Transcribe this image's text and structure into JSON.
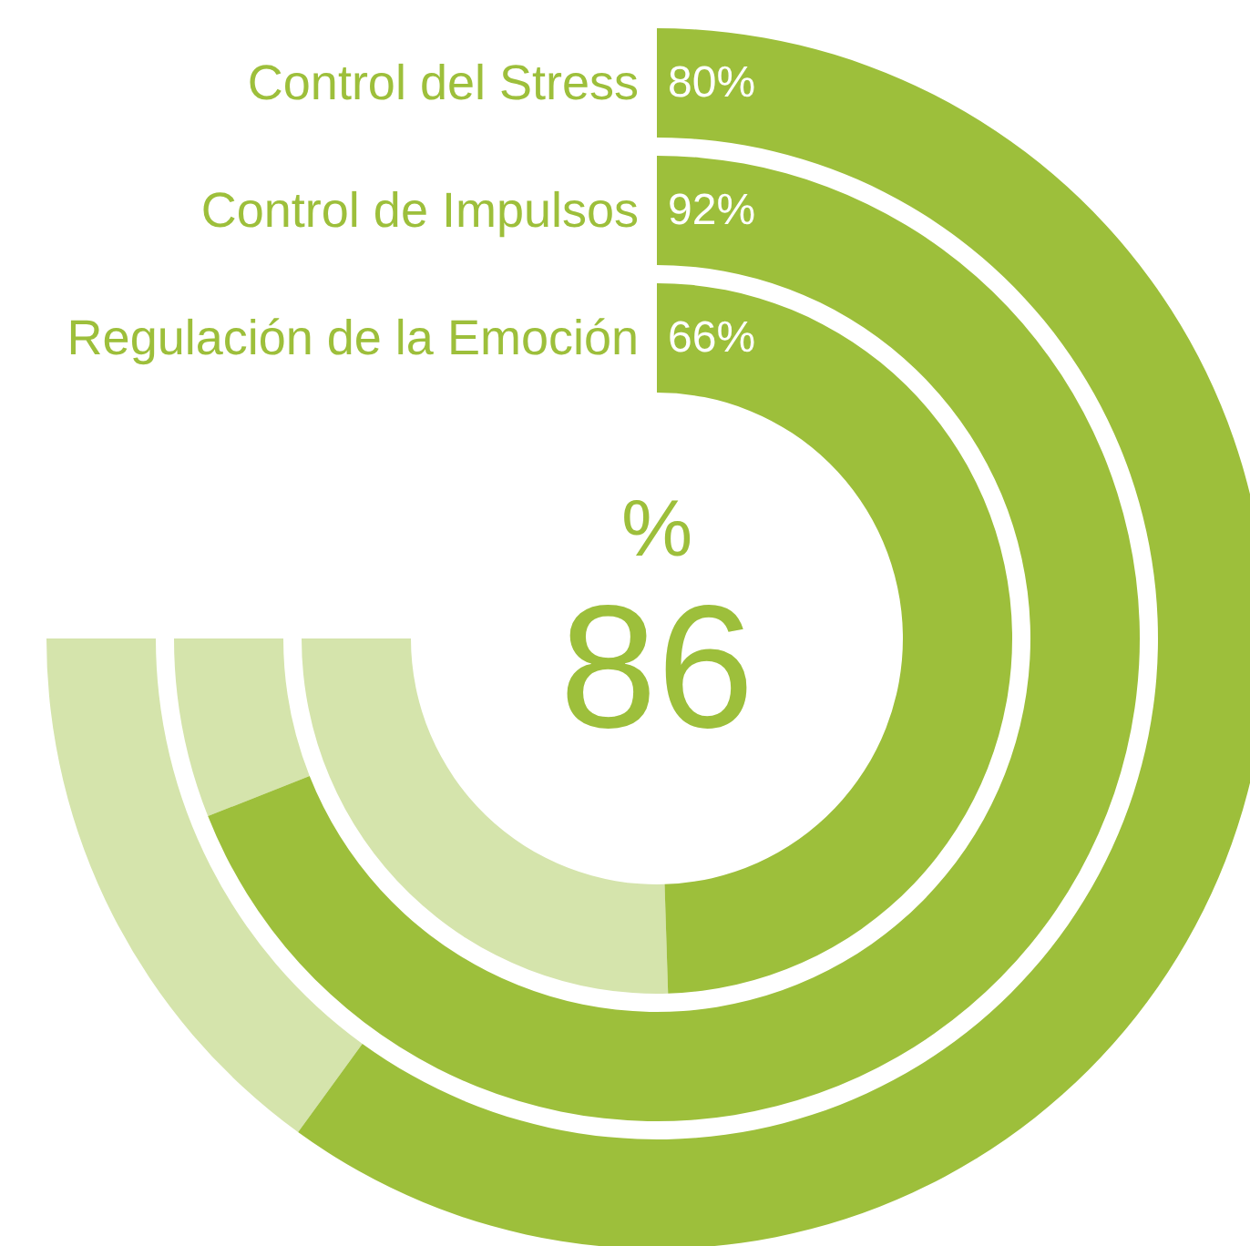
{
  "chart_data": {
    "type": "other",
    "categories": [
      "Control del Stress",
      "Control de Impulsos",
      "Regulación de la Emoción"
    ],
    "values": [
      80,
      92,
      66
    ],
    "value_labels": [
      "80%",
      "92%",
      "66%"
    ],
    "colors": [
      "#9dbf3b",
      "#9dbf3b",
      "#9dbf3b"
    ],
    "annotations": [
      "%",
      "86"
    ]
  }
}
